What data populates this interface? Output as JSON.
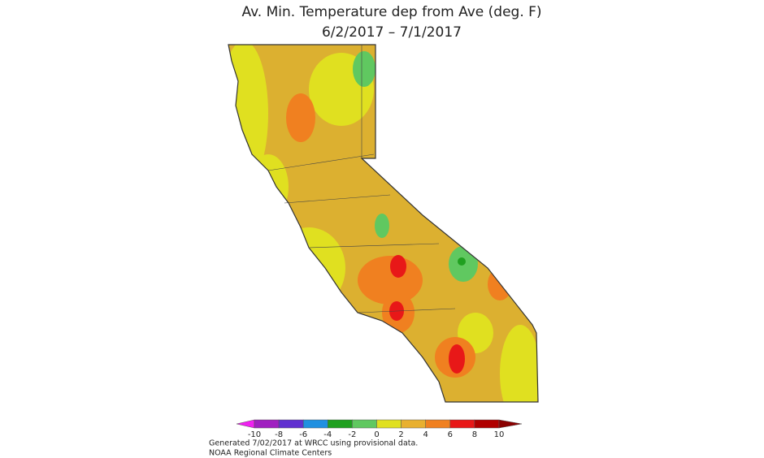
{
  "header": {
    "title": "Av. Min. Temperature dep from Ave (deg. F)",
    "subtitle": "6/2/2017 – 7/1/2017"
  },
  "legend": {
    "ticks": [
      -10,
      -8,
      -6,
      -4,
      -2,
      0,
      2,
      4,
      6,
      8,
      10
    ],
    "colors": [
      "#f020f0",
      "#a020c0",
      "#6030d0",
      "#2090e0",
      "#20a020",
      "#60c860",
      "#e0e020",
      "#e8b030",
      "#f08020",
      "#e81818",
      "#b00000",
      "#8a0000"
    ]
  },
  "footer": {
    "generated": "Generated 7/02/2017 at WRCC using provisional data.",
    "source": "NOAA Regional Climate Centers"
  }
}
